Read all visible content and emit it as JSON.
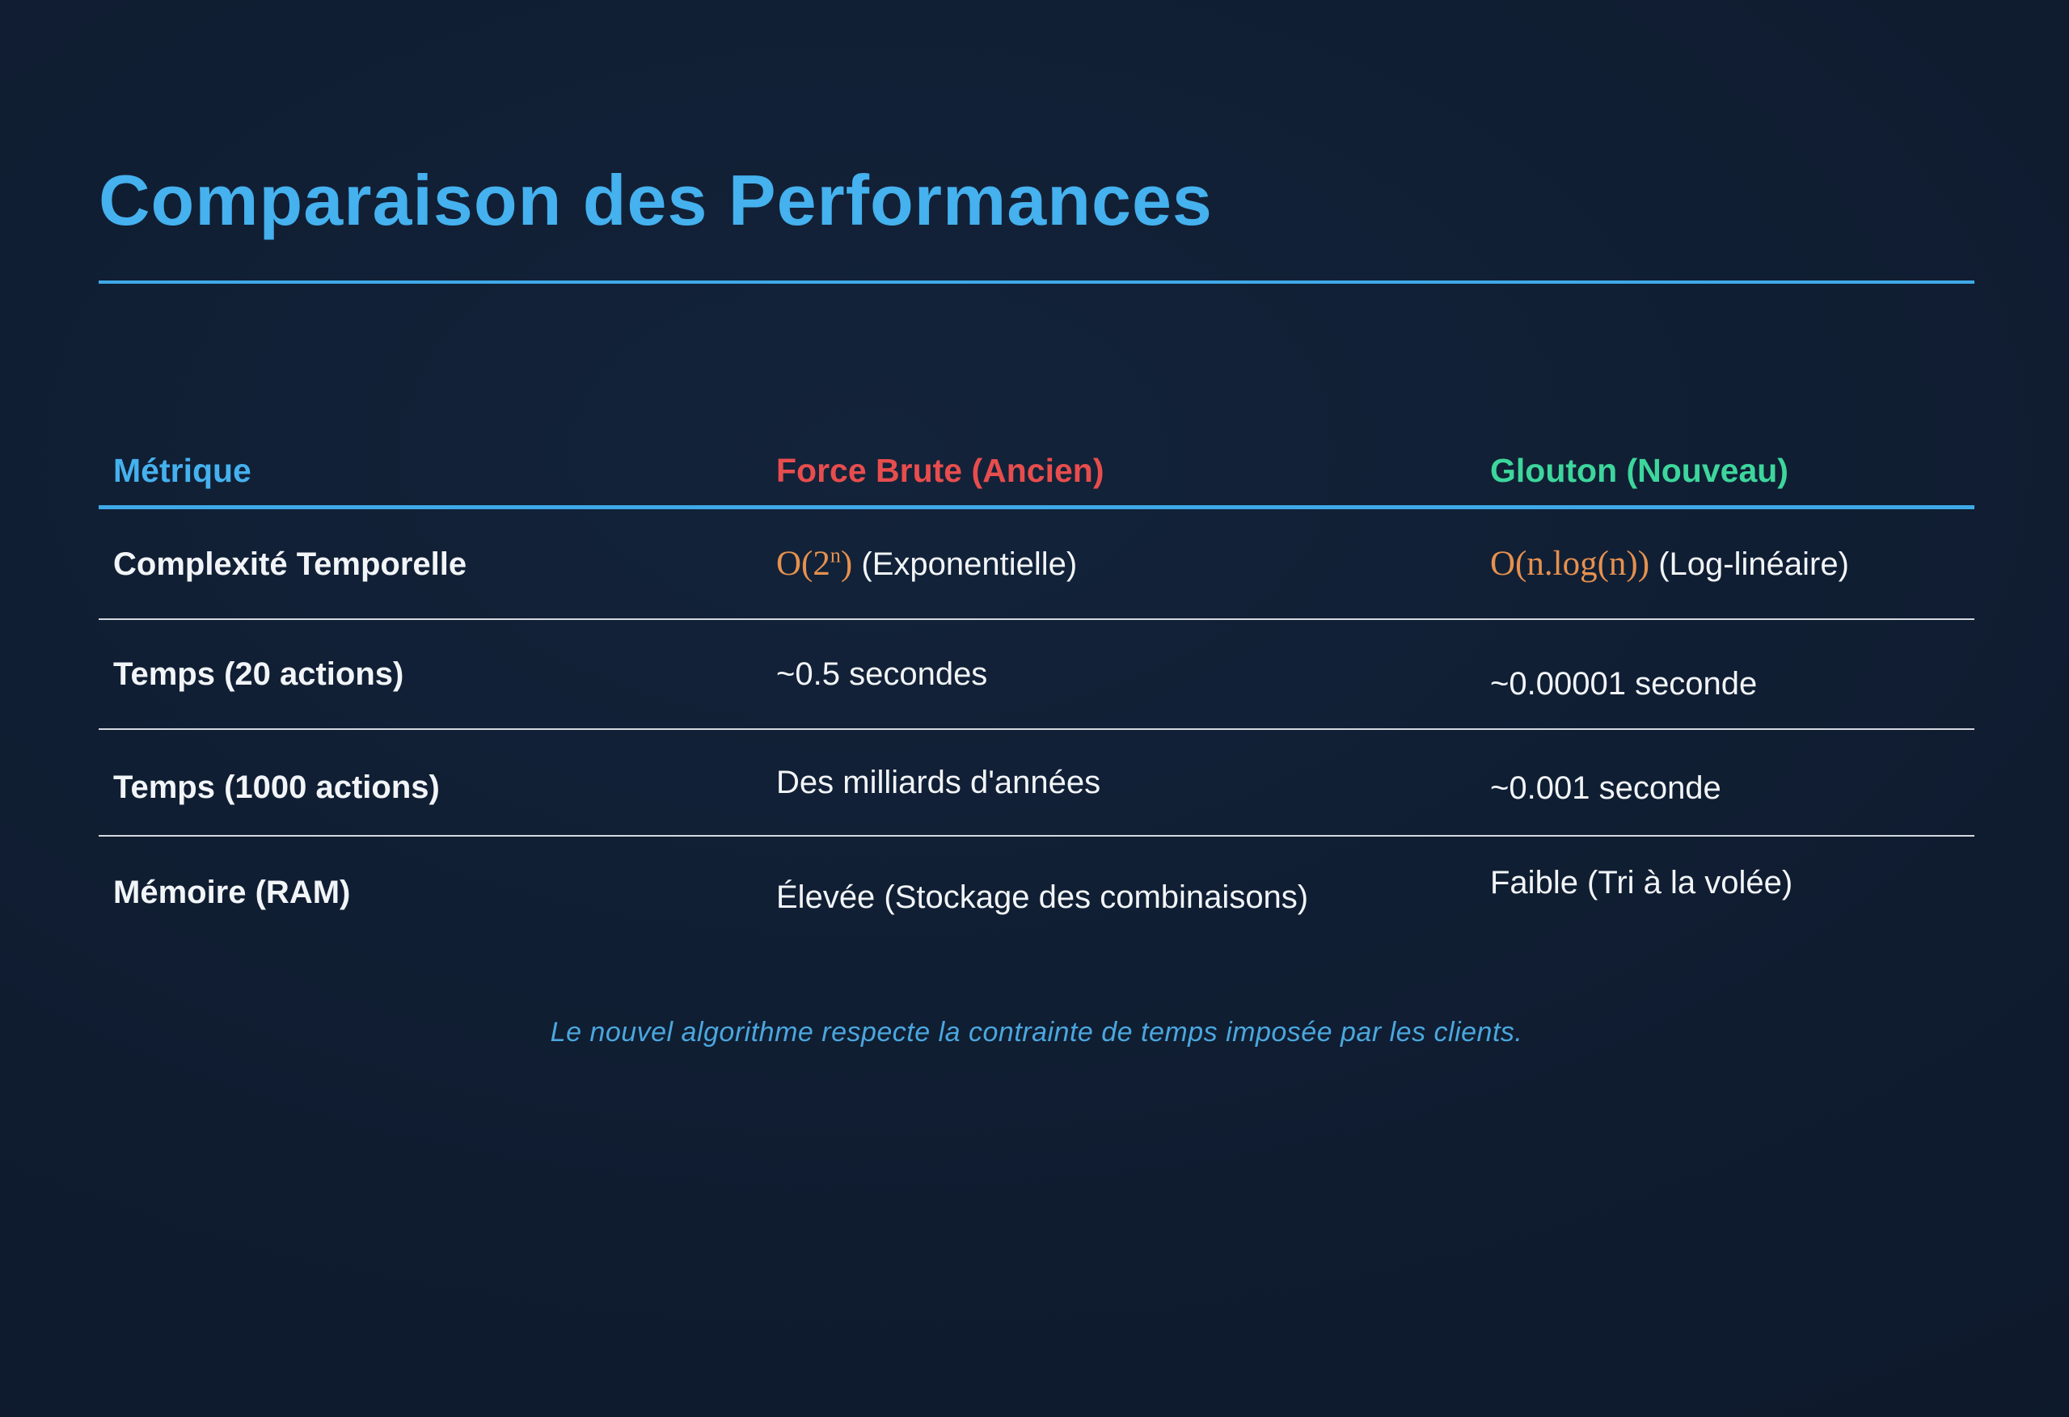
{
  "title": "Comparaison des Performances",
  "table": {
    "headers": [
      {
        "label": "Métrique",
        "color": "#45b1ee"
      },
      {
        "label": "Force Brute (Ancien)",
        "color": "#e84d4d"
      },
      {
        "label": "Glouton (Nouveau)",
        "color": "#3dd69c"
      }
    ],
    "rows": [
      {
        "metric": "Complexité Temporelle",
        "brute": {
          "math_open": "O(2",
          "math_sup": "n",
          "math_close": ")",
          "text": "(Exponentielle)"
        },
        "greedy": {
          "math": "O(n.log(n))",
          "text": "(Log-linéaire)"
        }
      },
      {
        "metric": "Temps (20 actions)",
        "brute": {
          "text_full": "~0.5 secondes"
        },
        "greedy": {
          "text_full": "~0.00001 seconde"
        }
      },
      {
        "metric": "Temps (1000 actions)",
        "brute": {
          "text_full": "Des milliards d'années"
        },
        "greedy": {
          "text_full": "~0.001 seconde"
        }
      },
      {
        "metric": "Mémoire (RAM)",
        "brute": {
          "text_full": "Élevée (Stockage des combinaisons)"
        },
        "greedy": {
          "text_full": "Faible (Tri à la volée)"
        }
      }
    ]
  },
  "footer": {
    "note": "Le nouvel algorithme respecte la contrainte de temps imposée par les clients."
  },
  "colors": {
    "background": "#0f1c30",
    "accent_blue": "#45b1ee",
    "rule_blue": "#3fa9e8",
    "brute_red": "#e84d4d",
    "greedy_green": "#3dd69c",
    "math_orange": "#e6914e",
    "body_text": "#f2f5f8",
    "footer_blue": "#4ba7de"
  }
}
